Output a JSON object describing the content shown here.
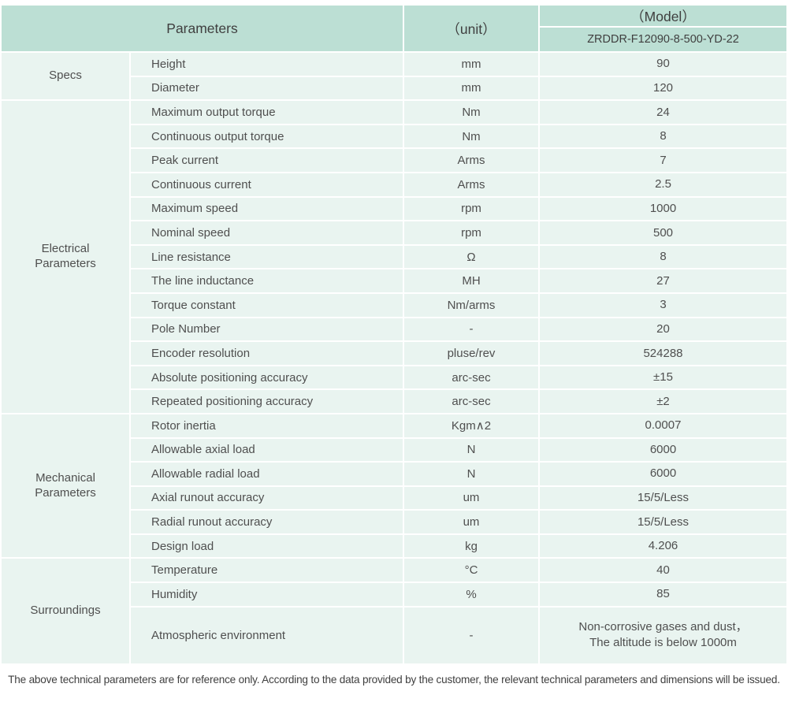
{
  "header": {
    "parameters_label": "Parameters",
    "unit_label": "（unit）",
    "model_label": "（Model）",
    "model_value": "ZRDDR-F12090-8-500-YD-22"
  },
  "sections": [
    {
      "group": "Specs",
      "rows": [
        {
          "param": "Height",
          "unit": "mm",
          "value": "90"
        },
        {
          "param": "Diameter",
          "unit": "mm",
          "value": "120"
        }
      ]
    },
    {
      "group": "Electrical Parameters",
      "rows": [
        {
          "param": "Maximum output torque",
          "unit": "Nm",
          "value": "24"
        },
        {
          "param": "Continuous output torque",
          "unit": "Nm",
          "value": "8"
        },
        {
          "param": "Peak current",
          "unit": "Arms",
          "value": "7"
        },
        {
          "param": "Continuous current",
          "unit": "Arms",
          "value": "2.5"
        },
        {
          "param": "Maximum speed",
          "unit": "rpm",
          "value": "1000"
        },
        {
          "param": "Nominal speed",
          "unit": "rpm",
          "value": "500"
        },
        {
          "param": "Line resistance",
          "unit": "Ω",
          "value": "8"
        },
        {
          "param": "The line inductance",
          "unit": "MH",
          "value": "27"
        },
        {
          "param": "Torque constant",
          "unit": "Nm/arms",
          "value": "3"
        },
        {
          "param": "Pole Number",
          "unit": "-",
          "value": "20"
        },
        {
          "param": "Encoder resolution",
          "unit": "pluse/rev",
          "value": "524288"
        },
        {
          "param": "Absolute positioning accuracy",
          "unit": "arc-sec",
          "value": "±15"
        },
        {
          "param": "Repeated positioning accuracy",
          "unit": "arc-sec",
          "value": "±2"
        }
      ]
    },
    {
      "group": "Mechanical Parameters",
      "rows": [
        {
          "param": "Rotor inertia",
          "unit": "Kgm∧2",
          "value": "0.0007"
        },
        {
          "param": "Allowable axial load",
          "unit": "N",
          "value": "6000"
        },
        {
          "param": "Allowable radial load",
          "unit": "N",
          "value": "6000"
        },
        {
          "param": "Axial runout accuracy",
          "unit": "um",
          "value": "15/5/Less"
        },
        {
          "param": "Radial runout accuracy",
          "unit": "um",
          "value": "15/5/Less"
        },
        {
          "param": "Design load",
          "unit": "kg",
          "value": "4.206"
        }
      ]
    },
    {
      "group": "Surroundings",
      "rows": [
        {
          "param": "Temperature",
          "unit": "°C",
          "value": "40"
        },
        {
          "param": "Humidity",
          "unit": "%",
          "value": "85"
        },
        {
          "param": "Atmospheric environment",
          "unit": "-",
          "value": "Non-corrosive gases and dust，\nThe altitude is below 1000m"
        }
      ]
    }
  ],
  "footer": {
    "note": "The above technical parameters are for reference only. According to the data provided by the customer, the relevant technical parameters and dimensions will be issued."
  },
  "colors": {
    "header_bg": "#bcdfd4",
    "cell_bg": "#e9f4f0",
    "grid": "#ffffff",
    "text": "#4a4a4a"
  }
}
